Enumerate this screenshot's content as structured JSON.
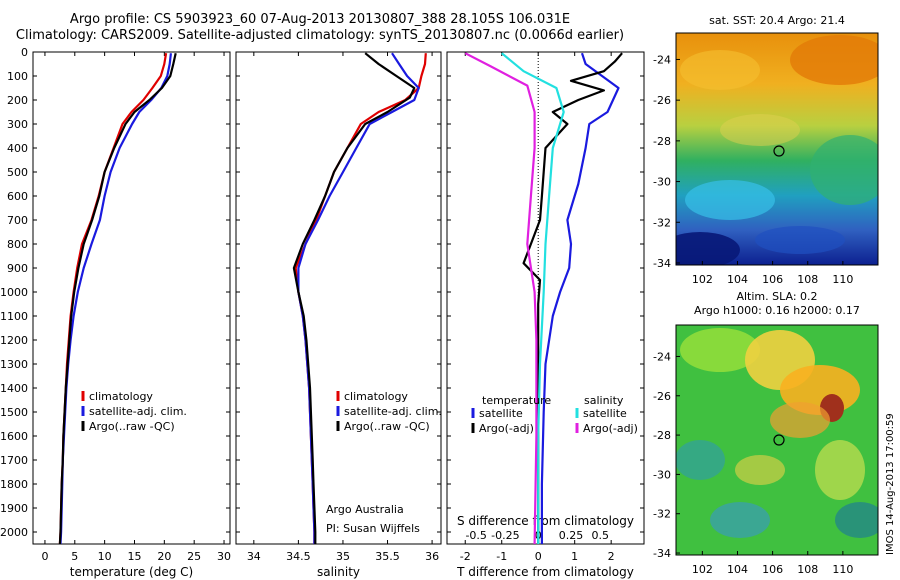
{
  "title_line1": "Argo profile: CS 5903923_60 07-Aug-2013 20130807_388 28.105S 106.031E",
  "title_line2": "Climatology: CARS2009. Satellite-adjusted climatology: synTS_20130807.nc (0.0066d earlier)",
  "colors": {
    "climatology": "#e00000",
    "satellite": "#1a1adf",
    "argo": "#000000",
    "sat_salinity": "#22e0e0",
    "argo_salinity": "#e020e0"
  },
  "chart_data": [
    {
      "type": "line",
      "panel": "temperature",
      "xlabel": "temperature (deg C)",
      "xlim": [
        -2,
        31
      ],
      "ylim": [
        2050,
        0
      ],
      "xticks": [
        "0",
        "5",
        "10",
        "15",
        "20",
        "25",
        "30"
      ],
      "yticks": [
        "0",
        "100",
        "200",
        "300",
        "400",
        "500",
        "600",
        "700",
        "800",
        "900",
        "1000",
        "1100",
        "1200",
        "1300",
        "1400",
        "1500",
        "1600",
        "1700",
        "1800",
        "1900",
        "2000"
      ],
      "legend": [
        "climatology",
        "satellite-adj. clim.",
        "Argo(..raw -QC)"
      ],
      "series": [
        {
          "name": "climatology",
          "color": "climatology",
          "points": [
            [
              20.3,
              5
            ],
            [
              20.0,
              50
            ],
            [
              19.4,
              100
            ],
            [
              18.0,
              150
            ],
            [
              16.5,
              200
            ],
            [
              14.5,
              250
            ],
            [
              13.0,
              300
            ],
            [
              11.5,
              400
            ],
            [
              10.0,
              500
            ],
            [
              9.0,
              600
            ],
            [
              7.8,
              700
            ],
            [
              6.2,
              800
            ],
            [
              5.4,
              900
            ],
            [
              4.8,
              1000
            ],
            [
              4.3,
              1100
            ],
            [
              4.0,
              1200
            ],
            [
              3.7,
              1300
            ],
            [
              3.5,
              1400
            ],
            [
              3.3,
              1500
            ],
            [
              3.1,
              1600
            ],
            [
              3.0,
              1700
            ],
            [
              2.8,
              1800
            ],
            [
              2.7,
              1900
            ],
            [
              2.6,
              2000
            ],
            [
              2.5,
              2050
            ]
          ]
        },
        {
          "name": "satellite-adj. clim.",
          "color": "satellite",
          "points": [
            [
              21.1,
              5
            ],
            [
              20.9,
              50
            ],
            [
              20.5,
              100
            ],
            [
              19.5,
              150
            ],
            [
              17.8,
              200
            ],
            [
              15.8,
              250
            ],
            [
              14.6,
              300
            ],
            [
              12.5,
              400
            ],
            [
              11.0,
              500
            ],
            [
              10.0,
              600
            ],
            [
              9.2,
              700
            ],
            [
              7.8,
              800
            ],
            [
              6.5,
              900
            ],
            [
              5.5,
              1000
            ],
            [
              4.8,
              1100
            ],
            [
              4.3,
              1200
            ],
            [
              3.9,
              1300
            ],
            [
              3.6,
              1400
            ],
            [
              3.4,
              1500
            ],
            [
              3.2,
              1600
            ],
            [
              3.0,
              1700
            ],
            [
              2.9,
              1800
            ],
            [
              2.8,
              1900
            ],
            [
              2.7,
              2000
            ],
            [
              2.6,
              2050
            ]
          ]
        },
        {
          "name": "Argo(..raw -QC)",
          "color": "argo",
          "points": [
            [
              21.9,
              5
            ],
            [
              21.5,
              50
            ],
            [
              21.0,
              100
            ],
            [
              19.6,
              150
            ],
            [
              17.5,
              200
            ],
            [
              15.0,
              250
            ],
            [
              13.5,
              300
            ],
            [
              11.6,
              400
            ],
            [
              10.0,
              500
            ],
            [
              9.1,
              600
            ],
            [
              7.9,
              700
            ],
            [
              6.5,
              800
            ],
            [
              5.6,
              900
            ],
            [
              4.9,
              1000
            ],
            [
              4.4,
              1100
            ],
            [
              4.1,
              1200
            ],
            [
              3.8,
              1300
            ],
            [
              3.5,
              1400
            ],
            [
              3.3,
              1500
            ],
            [
              3.1,
              1600
            ],
            [
              3.0,
              1700
            ],
            [
              2.8,
              1800
            ],
            [
              2.7,
              1900
            ],
            [
              2.6,
              2000
            ],
            [
              2.5,
              2050
            ]
          ]
        }
      ]
    },
    {
      "type": "line",
      "panel": "salinity",
      "xlabel": "salinity",
      "xlim": [
        33.8,
        36.1
      ],
      "ylim": [
        2050,
        0
      ],
      "xticks": [
        "34",
        "34.5",
        "35",
        "35.5",
        "36"
      ],
      "legend": [
        "climatology",
        "satellite-adj. clim.",
        "Argo(..raw -QC)"
      ],
      "annotation": [
        "Argo Australia",
        "PI: Susan Wijffels"
      ],
      "series": [
        {
          "name": "climatology",
          "color": "climatology",
          "points": [
            [
              35.93,
              5
            ],
            [
              35.92,
              50
            ],
            [
              35.88,
              100
            ],
            [
              35.85,
              150
            ],
            [
              35.7,
              200
            ],
            [
              35.4,
              250
            ],
            [
              35.2,
              300
            ],
            [
              35.05,
              400
            ],
            [
              34.9,
              500
            ],
            [
              34.8,
              600
            ],
            [
              34.7,
              700
            ],
            [
              34.58,
              800
            ],
            [
              34.47,
              900
            ],
            [
              34.5,
              1000
            ],
            [
              34.55,
              1100
            ],
            [
              34.58,
              1200
            ],
            [
              34.6,
              1300
            ],
            [
              34.62,
              1400
            ],
            [
              34.63,
              1500
            ],
            [
              34.64,
              1600
            ],
            [
              34.65,
              1700
            ],
            [
              34.66,
              1800
            ],
            [
              34.67,
              1900
            ],
            [
              34.68,
              2000
            ],
            [
              34.68,
              2050
            ]
          ]
        },
        {
          "name": "satellite-adj. clim.",
          "color": "satellite",
          "points": [
            [
              35.55,
              5
            ],
            [
              35.63,
              50
            ],
            [
              35.72,
              100
            ],
            [
              35.85,
              150
            ],
            [
              35.8,
              200
            ],
            [
              35.55,
              250
            ],
            [
              35.3,
              300
            ],
            [
              35.15,
              400
            ],
            [
              35.0,
              500
            ],
            [
              34.85,
              600
            ],
            [
              34.72,
              700
            ],
            [
              34.58,
              800
            ],
            [
              34.5,
              900
            ],
            [
              34.5,
              1000
            ],
            [
              34.55,
              1100
            ],
            [
              34.58,
              1200
            ],
            [
              34.6,
              1300
            ],
            [
              34.62,
              1400
            ],
            [
              34.63,
              1500
            ],
            [
              34.64,
              1600
            ],
            [
              34.65,
              1700
            ],
            [
              34.66,
              1800
            ],
            [
              34.67,
              1900
            ],
            [
              34.68,
              2000
            ],
            [
              34.68,
              2050
            ]
          ]
        },
        {
          "name": "Argo(..raw -QC)",
          "color": "argo",
          "points": [
            [
              35.25,
              5
            ],
            [
              35.4,
              50
            ],
            [
              35.6,
              100
            ],
            [
              35.8,
              150
            ],
            [
              35.75,
              190
            ],
            [
              35.5,
              250
            ],
            [
              35.25,
              300
            ],
            [
              35.05,
              400
            ],
            [
              34.9,
              500
            ],
            [
              34.8,
              600
            ],
            [
              34.68,
              700
            ],
            [
              34.55,
              800
            ],
            [
              34.45,
              900
            ],
            [
              34.5,
              1000
            ],
            [
              34.56,
              1100
            ],
            [
              34.59,
              1200
            ],
            [
              34.61,
              1300
            ],
            [
              34.63,
              1400
            ],
            [
              34.64,
              1500
            ],
            [
              34.65,
              1600
            ],
            [
              34.66,
              1700
            ],
            [
              34.67,
              1800
            ],
            [
              34.68,
              1900
            ],
            [
              34.69,
              2000
            ],
            [
              34.69,
              2050
            ]
          ]
        }
      ]
    },
    {
      "type": "line",
      "panel": "difference",
      "xlabel": "T difference from climatology",
      "xlabel_top": "S difference from climatology",
      "xlim": [
        -2.5,
        2.9
      ],
      "ylim": [
        2050,
        0
      ],
      "xticks": [
        "-2",
        "-1",
        "0",
        "1",
        "2"
      ],
      "xticks_s": [
        "-0.5",
        "-0.25",
        "0",
        "0.25",
        "0.5"
      ],
      "legend_title_t": "temperature",
      "legend_title_s": "salinity",
      "legend": [
        "satellite",
        "Argo(-adj)",
        "satellite",
        "Argo(-adj)"
      ],
      "series": [
        {
          "name": "satellite",
          "color": "satellite",
          "points": [
            [
              1.2,
              5
            ],
            [
              1.3,
              50
            ],
            [
              2.2,
              150
            ],
            [
              1.9,
              250
            ],
            [
              1.4,
              300
            ],
            [
              1.3,
              400
            ],
            [
              1.1,
              550
            ],
            [
              0.8,
              700
            ],
            [
              0.9,
              800
            ],
            [
              0.85,
              900
            ],
            [
              0.6,
              1000
            ],
            [
              0.4,
              1100
            ],
            [
              0.2,
              1300
            ],
            [
              0.15,
              1500
            ],
            [
              0.1,
              1800
            ],
            [
              0.1,
              2050
            ]
          ]
        },
        {
          "name": "Argo(-adj)",
          "color": "argo",
          "points": [
            [
              2.3,
              5
            ],
            [
              2.1,
              40
            ],
            [
              1.8,
              80
            ],
            [
              0.9,
              120
            ],
            [
              1.8,
              160
            ],
            [
              1.1,
              200
            ],
            [
              0.4,
              250
            ],
            [
              0.8,
              300
            ],
            [
              0.2,
              400
            ],
            [
              0.15,
              500
            ],
            [
              0.1,
              600
            ],
            [
              0.05,
              700
            ],
            [
              -0.2,
              800
            ],
            [
              -0.4,
              880
            ],
            [
              0.05,
              950
            ],
            [
              0.0,
              1050
            ],
            [
              0.0,
              1300
            ],
            [
              0.0,
              2050
            ]
          ]
        },
        {
          "name": "satellite",
          "color": "sat_salinity",
          "points": [
            [
              -1.0,
              5
            ],
            [
              -0.4,
              80
            ],
            [
              0.5,
              150
            ],
            [
              0.7,
              250
            ],
            [
              0.6,
              300
            ],
            [
              0.4,
              400
            ],
            [
              0.3,
              600
            ],
            [
              0.2,
              800
            ],
            [
              0.15,
              1000
            ],
            [
              0.05,
              1300
            ],
            [
              0.0,
              1600
            ],
            [
              0.0,
              2050
            ]
          ]
        },
        {
          "name": "Argo(-adj)",
          "color": "argo_salinity",
          "points": [
            [
              -2.0,
              5
            ],
            [
              -1.3,
              60
            ],
            [
              -0.3,
              140
            ],
            [
              -0.1,
              250
            ],
            [
              -0.1,
              400
            ],
            [
              -0.2,
              600
            ],
            [
              -0.3,
              800
            ],
            [
              -0.1,
              1000
            ],
            [
              -0.05,
              1200
            ],
            [
              -0.05,
              1600
            ],
            [
              -0.1,
              2050
            ]
          ]
        }
      ]
    }
  ],
  "maps": [
    {
      "title": "sat. SST: 20.4  Argo: 21.4",
      "xticks": [
        "102",
        "104",
        "106",
        "108",
        "110"
      ],
      "yticks": [
        "-24",
        "-26",
        "-28",
        "-30",
        "-32",
        "-34"
      ],
      "marker": [
        106.03,
        -28.1
      ]
    },
    {
      "title_line1": "Altim. SLA: 0.2",
      "title_line2": "Argo h1000: 0.16  h2000: 0.17",
      "xticks": [
        "102",
        "104",
        "106",
        "108",
        "110"
      ],
      "yticks": [
        "-24",
        "-26",
        "-28",
        "-30",
        "-32",
        "-34"
      ],
      "marker": [
        106.03,
        -28.1
      ]
    }
  ],
  "stamp": "IMOS 14-Aug-2013 17:00:59"
}
